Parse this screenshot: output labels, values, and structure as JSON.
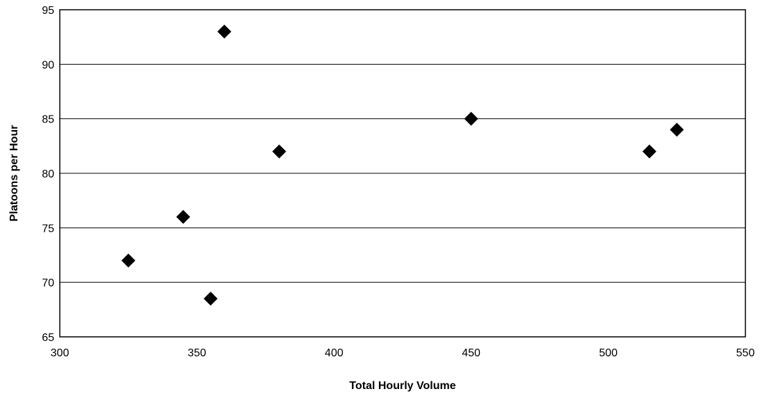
{
  "chart_data": {
    "type": "scatter",
    "title": "",
    "xlabel": "Total Hourly Volume",
    "ylabel": "Platoons per Hour",
    "xlim": [
      300,
      550
    ],
    "ylim": [
      65,
      95
    ],
    "x_ticks": [
      "300",
      "350",
      "400",
      "450",
      "500",
      "550"
    ],
    "y_ticks": [
      "65",
      "70",
      "75",
      "80",
      "85",
      "90",
      "95"
    ],
    "grid": "horizontal",
    "marker": "diamond",
    "marker_color": "#000000",
    "points": [
      {
        "x": 325,
        "y": 72
      },
      {
        "x": 345,
        "y": 76
      },
      {
        "x": 355,
        "y": 68.5
      },
      {
        "x": 360,
        "y": 93
      },
      {
        "x": 380,
        "y": 82
      },
      {
        "x": 450,
        "y": 85
      },
      {
        "x": 515,
        "y": 82
      },
      {
        "x": 525,
        "y": 84
      }
    ]
  }
}
